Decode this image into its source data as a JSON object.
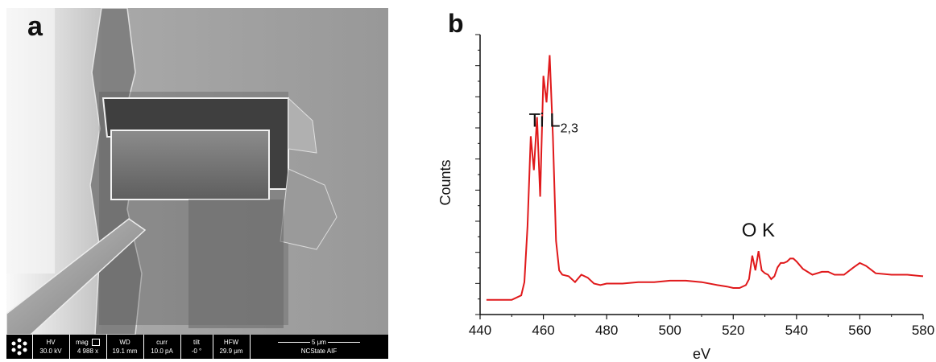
{
  "panel_a": {
    "letter": "a",
    "databar": {
      "cells": [
        {
          "label": "HV",
          "value": "30.0 kV"
        },
        {
          "label": "mag",
          "value": "4 988 x"
        },
        {
          "label": "WD",
          "value": "19.1 mm"
        },
        {
          "label": "curr",
          "value": "10.0 pA"
        },
        {
          "label": "tilt",
          "value": "-0 °"
        },
        {
          "label": "HFW",
          "value": "29.9 μm"
        }
      ],
      "scale_label": "5 μm",
      "lab": "NCState AIF"
    }
  },
  "panel_b": {
    "letter": "b"
  },
  "chart_data": {
    "type": "line",
    "title": "",
    "xlabel": "eV",
    "ylabel": "Counts",
    "xlim": [
      440,
      580
    ],
    "x_ticks": [
      440,
      460,
      480,
      500,
      520,
      540,
      560,
      580
    ],
    "y_tick_labels": false,
    "grid": false,
    "color": "#e0191b",
    "annotations": [
      {
        "text": "Ti L",
        "subscript": "2,3",
        "x": 461,
        "y": 118
      },
      {
        "text": "O K",
        "x": 528,
        "y": 43
      }
    ],
    "series": [
      {
        "x": [
          442,
          450,
          453,
          454,
          455,
          456,
          457,
          458,
          459,
          460,
          461,
          462,
          463,
          464,
          465,
          466,
          468,
          470,
          472,
          474,
          476,
          478,
          480,
          485,
          490,
          495,
          500,
          505,
          510,
          515,
          518,
          520,
          522,
          524,
          525,
          526,
          527,
          528,
          529,
          530,
          531,
          532,
          533,
          534,
          535,
          536,
          537,
          538,
          539,
          540,
          542,
          545,
          548,
          550,
          552,
          555,
          558,
          560,
          562,
          565,
          570,
          575,
          580
        ],
        "y": [
          0,
          0,
          3,
          12,
          50,
          111,
          88,
          124,
          70,
          152,
          134,
          166,
          111,
          40,
          20,
          17,
          16,
          12,
          17,
          15,
          11,
          10,
          11,
          11,
          12,
          12,
          13,
          13,
          12,
          10,
          9,
          8,
          8,
          10,
          14,
          30,
          20,
          33,
          20,
          18,
          17,
          14,
          16,
          22,
          25,
          25,
          26,
          28,
          28,
          26,
          21,
          17,
          19,
          19,
          17,
          17,
          22,
          25,
          23,
          18,
          17,
          17,
          16
        ]
      }
    ]
  }
}
